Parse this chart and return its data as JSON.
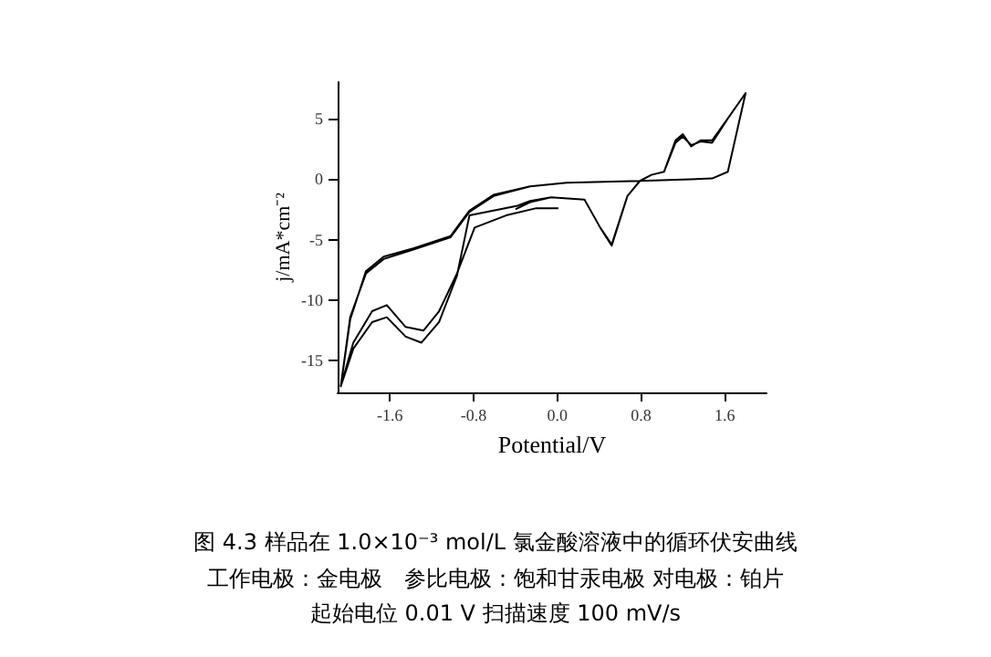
{
  "chart_data": {
    "type": "line",
    "title": "图 4.3 样品在 1.0×10⁻³ mol/L 氯金酸溶液中的循环伏安曲线",
    "xlabel": "Potential/V",
    "ylabel": "j/mA*cm⁻²",
    "annotations": [
      "工作电极：金电极　参比电极：饱和甘汞电极 对电极：铂片",
      "起始电位 0.01 V 扫描速度 100 mV/s"
    ],
    "xlim": [
      -2.1,
      2.0
    ],
    "ylim": [
      -17.6,
      8
    ],
    "xticks": [
      {
        "value": -1.6,
        "label": "-1.6"
      },
      {
        "value": -0.8,
        "label": "-0.8"
      },
      {
        "value": 0,
        "label": "0.0"
      },
      {
        "value": 0.8,
        "label": "0.8"
      },
      {
        "value": 1.6,
        "label": "1.6"
      }
    ],
    "yticks": [
      -15,
      -10,
      -5,
      0,
      5
    ],
    "grid": false,
    "marker": "none",
    "line_style": "solid",
    "series": [
      {
        "color": "#000000",
        "x": [
          0.01,
          -0.2,
          -0.49,
          -0.79,
          -0.96,
          -1.13,
          -1.28,
          -1.45,
          -1.63,
          -1.77,
          -1.95,
          -2.07,
          -1.98,
          -1.83,
          -1.66,
          -1.37,
          -1.02,
          -0.84,
          -0.61,
          -0.26,
          0.09,
          0.79,
          1.48,
          1.63,
          1.8,
          1.63,
          1.48,
          1.37,
          1.28,
          1.2,
          1.13,
          1.02,
          0.9,
          0.79,
          0.67,
          0.52,
          0.41,
          0.26,
          -0.06,
          -0.26,
          -0.38,
          -0.73,
          -0.84,
          -0.96,
          -1.13,
          -1.3,
          -1.45,
          -1.63,
          -1.77,
          -1.95,
          -2.07,
          -1.98,
          -1.83,
          -1.66,
          -1.37,
          -1.02,
          -0.84,
          -0.61,
          -0.26,
          0.09,
          0.79,
          1.48,
          1.63,
          1.8,
          1.63,
          1.48,
          1.37,
          1.28,
          1.2,
          1.13,
          1.02,
          0.9,
          0.79,
          0.67,
          0.52,
          0.41,
          0.26,
          -0.06,
          -0.26,
          -0.4
        ],
        "values": [
          -2.4,
          -2.4,
          -3.0,
          -4.0,
          -7.8,
          -10.9,
          -12.5,
          -12.2,
          -10.4,
          -10.9,
          -13.5,
          -17.1,
          -11.4,
          -7.8,
          -6.6,
          -5.8,
          -4.8,
          -2.7,
          -1.4,
          -0.6,
          -0.3,
          -0.15,
          0.05,
          0.6,
          7.1,
          5.0,
          3.2,
          3.2,
          2.7,
          3.7,
          3.2,
          0.6,
          0.35,
          -0.15,
          -1.4,
          -5.5,
          -4.0,
          -1.7,
          -1.5,
          -1.8,
          -2.2,
          -2.8,
          -3.0,
          -8.0,
          -11.8,
          -13.5,
          -13.0,
          -11.4,
          -11.8,
          -14.0,
          -17.1,
          -11.6,
          -7.6,
          -6.4,
          -5.7,
          -4.7,
          -2.6,
          -1.3,
          -0.6,
          -0.3,
          -0.15,
          0.05,
          0.6,
          7.1,
          5.0,
          3.0,
          3.1,
          2.8,
          3.5,
          3.0,
          0.6,
          0.35,
          -0.15,
          -1.4,
          -5.4,
          -4.0,
          -1.7,
          -1.5,
          -1.9,
          -2.5
        ]
      }
    ]
  }
}
